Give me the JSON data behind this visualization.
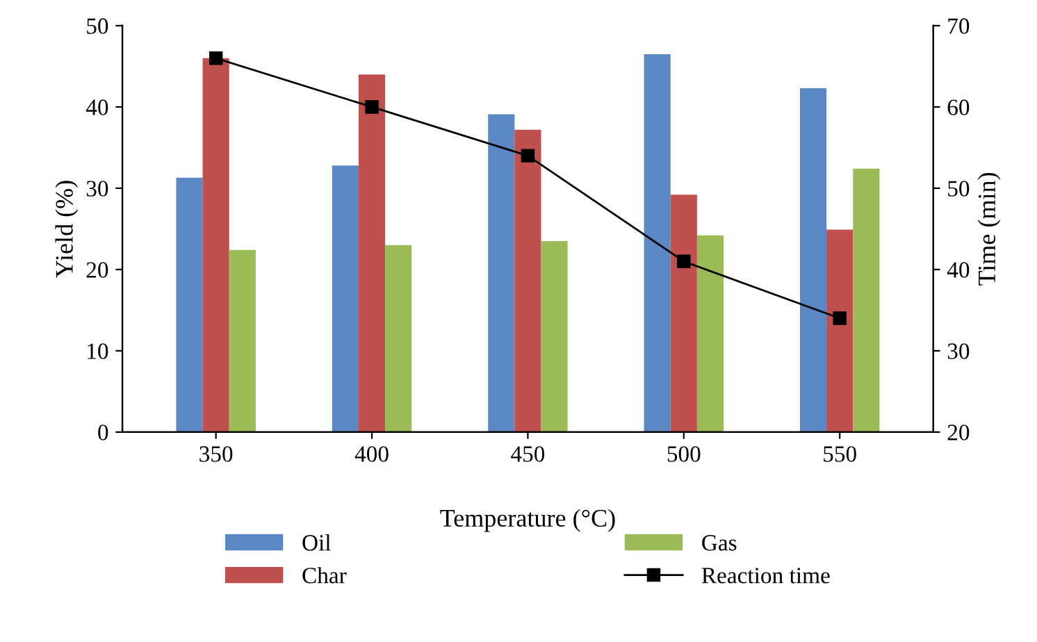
{
  "chart_data": {
    "type": "bar",
    "xlabel": "Temperature (°C)",
    "ylabel": "Yield (%)",
    "y2label": "Time (min)",
    "categories": [
      "350",
      "400",
      "450",
      "500",
      "550"
    ],
    "series": [
      {
        "name": "Oil",
        "color": "#5b87c5",
        "values": [
          31.3,
          32.8,
          39.1,
          46.5,
          42.3
        ]
      },
      {
        "name": "Char",
        "color": "#c0504d",
        "values": [
          46.0,
          44.0,
          37.2,
          29.2,
          24.9
        ]
      },
      {
        "name": "Gas",
        "color": "#9bbb59",
        "values": [
          22.4,
          23.0,
          23.5,
          24.2,
          32.4
        ]
      },
      {
        "name": "Reaction time",
        "type": "line",
        "axis": "y2",
        "color": "#000000",
        "marker": "square",
        "values": [
          66,
          60,
          54,
          41,
          34
        ]
      }
    ],
    "ylim": [
      0,
      50
    ],
    "yticks": [
      0,
      10,
      20,
      30,
      40,
      50
    ],
    "y2lim": [
      20,
      70
    ],
    "y2ticks": [
      20,
      30,
      40,
      50,
      60,
      70
    ],
    "grid": false,
    "legend": "bottom"
  }
}
